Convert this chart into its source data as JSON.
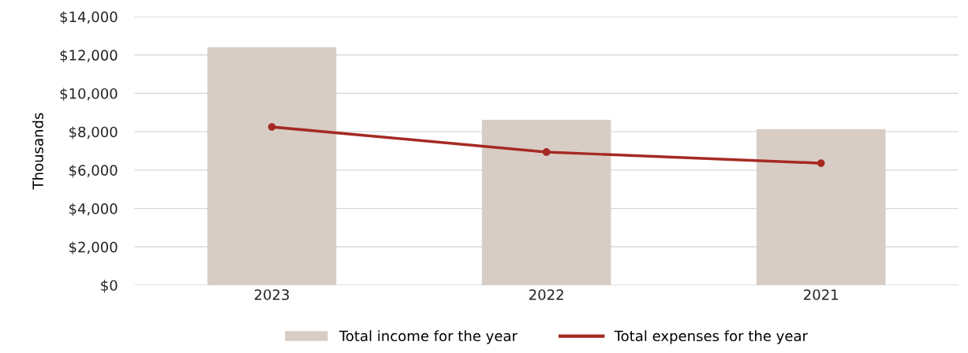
{
  "chart_data": {
    "type": "bar",
    "ylabel": "Thousands",
    "categories": [
      "2023",
      "2022",
      "2021"
    ],
    "series": [
      {
        "name": "Total income for the year",
        "color": "#d8cdc4",
        "values": [
          12400,
          8620,
          8130
        ]
      },
      {
        "name": "Total expenses for the year",
        "type": "line",
        "color": "#a52a22",
        "values": [
          8250,
          6940,
          6360
        ]
      }
    ],
    "ylim": [
      0,
      14000
    ],
    "yticks": [
      {
        "value": 0,
        "label": "$0"
      },
      {
        "value": 2000,
        "label": "$2,000"
      },
      {
        "value": 4000,
        "label": "$4,000"
      },
      {
        "value": 6000,
        "label": "$6,000"
      },
      {
        "value": 8000,
        "label": "$8,000"
      },
      {
        "value": 10000,
        "label": "$10,000"
      },
      {
        "value": 12000,
        "label": "$12,000"
      },
      {
        "value": 14000,
        "label": "$14,000"
      }
    ],
    "grid": "y",
    "legend": "bottom",
    "marker": "circle",
    "line_style": "solid"
  }
}
